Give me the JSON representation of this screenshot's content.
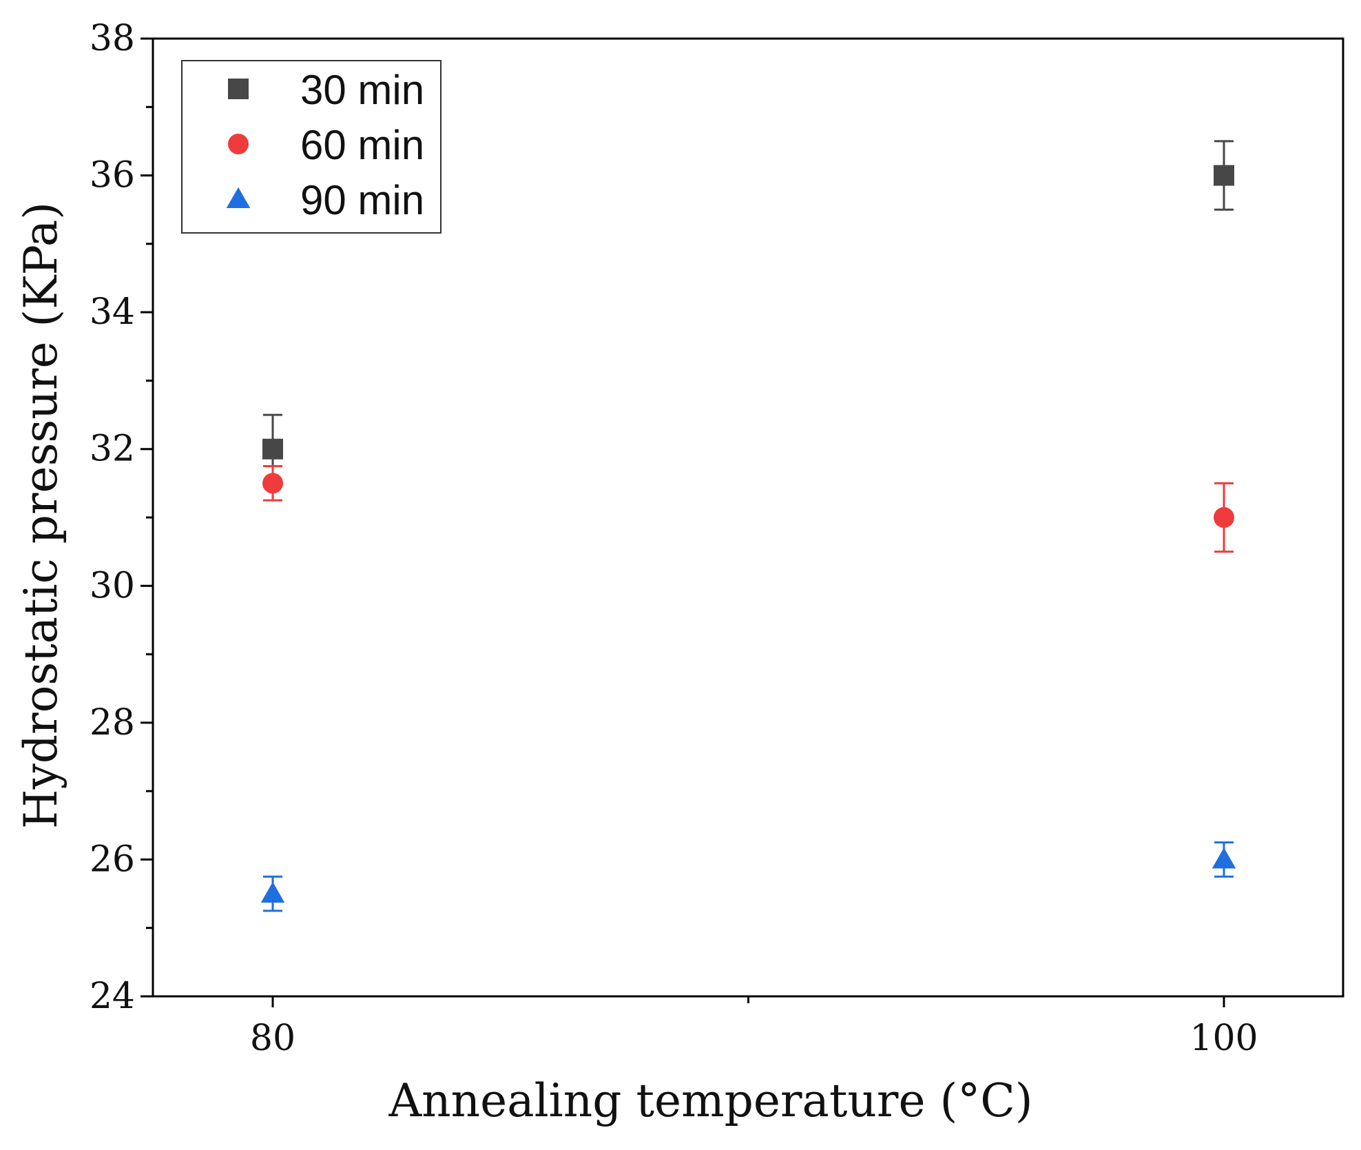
{
  "chart_data": {
    "type": "scatter",
    "title": "",
    "xlabel": "Annealing temperature (°C)",
    "ylabel": "Hydrostatic pressure (KPa)",
    "x_categories": [
      "80",
      "100"
    ],
    "ylim": [
      24,
      38
    ],
    "y_ticks": [
      "24",
      "26",
      "28",
      "30",
      "32",
      "34",
      "36",
      "38"
    ],
    "legend_position": "top-left",
    "series": [
      {
        "name": "30 min",
        "marker": "square",
        "color": "#474747",
        "values": [
          32,
          36
        ],
        "errors": [
          0.5,
          0.5
        ]
      },
      {
        "name": "60 min",
        "marker": "circle",
        "color": "#ef3b3b",
        "values": [
          31.5,
          31
        ],
        "errors": [
          0.25,
          0.5
        ]
      },
      {
        "name": "90 min",
        "marker": "triangle",
        "color": "#1f6fde",
        "values": [
          25.5,
          26
        ],
        "errors": [
          0.25,
          0.25
        ]
      }
    ]
  }
}
